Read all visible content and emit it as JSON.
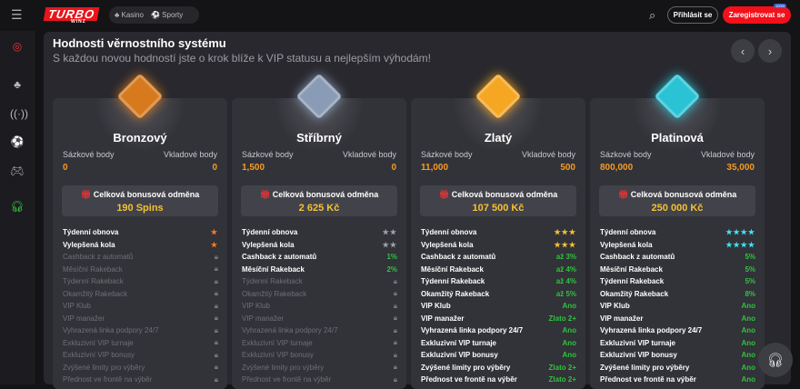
{
  "header": {
    "logo": "TURBO",
    "logo_sub": "WINZ",
    "nav": [
      {
        "label": "Kasino",
        "icon": "cherries-icon"
      },
      {
        "label": "Sporty",
        "icon": "soccer-ball-icon"
      }
    ],
    "login": "Přihlásit se",
    "register": "Zaregistrovat se",
    "badge": "100%"
  },
  "page": {
    "title": "Hodnosti věrnostního systému",
    "subtitle": "S každou novou hodností jste o krok blíže k VIP statusu a nejlepším výhodám!"
  },
  "labels": {
    "bet_points": "Sázkové body",
    "deposit_points": "Vkladové body",
    "total_bonus": "Celková bonusová odměna"
  },
  "colors": {
    "accent": "#f4101b",
    "green": "#2fc33d",
    "orange": "#f59b23"
  },
  "tiers": [
    {
      "name": "Bronzový",
      "bet": "0",
      "deposit": "0",
      "bonus": "190 Spins",
      "color": "#d77a1e",
      "star": "#f57c23",
      "rows": [
        {
          "label": "Týdenní obnova",
          "stars": 1
        },
        {
          "label": "Vylepšená kola",
          "stars": 1
        },
        {
          "label": "Cashback z automatů",
          "lock": true
        },
        {
          "label": "Měsíční Rakeback",
          "lock": true
        },
        {
          "label": "Týdenní Rakeback",
          "lock": true
        },
        {
          "label": "Okamžitý Rakeback",
          "lock": true
        },
        {
          "label": "VIP Klub",
          "lock": true
        },
        {
          "label": "VIP manažer",
          "lock": true
        },
        {
          "label": "Vyhrazená linka podpory 24/7",
          "lock": true
        },
        {
          "label": "Exkluzivní VIP turnaje",
          "lock": true
        },
        {
          "label": "Exkluzivní VIP bonusy",
          "lock": true
        },
        {
          "label": "Zvýšené limity pro výběry",
          "lock": true
        },
        {
          "label": "Přednost ve frontě na výběr",
          "lock": true
        }
      ]
    },
    {
      "name": "Stříbrný",
      "bet": "1,500",
      "deposit": "0",
      "bonus": "2 625 Kč",
      "color": "#8a9bb5",
      "star": "#a0a0a8",
      "rows": [
        {
          "label": "Týdenní obnova",
          "stars": 2
        },
        {
          "label": "Vylepšená kola",
          "stars": 2
        },
        {
          "label": "Cashback z automatů",
          "value": "1%"
        },
        {
          "label": "Měsíční Rakeback",
          "value": "2%"
        },
        {
          "label": "Týdenní Rakeback",
          "lock": true
        },
        {
          "label": "Okamžitý Rakeback",
          "lock": true
        },
        {
          "label": "VIP Klub",
          "lock": true
        },
        {
          "label": "VIP manažer",
          "lock": true
        },
        {
          "label": "Vyhrazená linka podpory 24/7",
          "lock": true
        },
        {
          "label": "Exkluzivní VIP turnaje",
          "lock": true
        },
        {
          "label": "Exkluzivní VIP bonusy",
          "lock": true
        },
        {
          "label": "Zvýšené limity pro výběry",
          "lock": true
        },
        {
          "label": "Přednost ve frontě na výběr",
          "lock": true
        }
      ]
    },
    {
      "name": "Zlatý",
      "bet": "11,000",
      "deposit": "500",
      "bonus": "107 500 Kč",
      "color": "#f5a623",
      "star": "#f5c232",
      "rows": [
        {
          "label": "Týdenní obnova",
          "stars": 3
        },
        {
          "label": "Vylepšená kola",
          "stars": 3
        },
        {
          "label": "Cashback z automatů",
          "value": "až 3%"
        },
        {
          "label": "Měsíční Rakeback",
          "value": "až 4%"
        },
        {
          "label": "Týdenní Rakeback",
          "value": "až 4%"
        },
        {
          "label": "Okamžitý Rakeback",
          "value": "až 5%"
        },
        {
          "label": "VIP Klub",
          "value": "Ano"
        },
        {
          "label": "VIP manažer",
          "value": "Zlato 2+"
        },
        {
          "label": "Vyhrazená linka podpory 24/7",
          "value": "Ano"
        },
        {
          "label": "Exkluzivní VIP turnaje",
          "value": "Ano"
        },
        {
          "label": "Exkluzivní VIP bonusy",
          "value": "Ano"
        },
        {
          "label": "Zvýšené limity pro výběry",
          "value": "Zlato 2+"
        },
        {
          "label": "Přednost ve frontě na výběr",
          "value": "Zlato 2+"
        }
      ]
    },
    {
      "name": "Platinová",
      "bet": "800,000",
      "deposit": "35,000",
      "bonus": "250 000 Kč",
      "color": "#2ac3d6",
      "star": "#3fe3f0",
      "rows": [
        {
          "label": "Týdenní obnova",
          "stars": 4
        },
        {
          "label": "Vylepšená kola",
          "stars": 4
        },
        {
          "label": "Cashback z automatů",
          "value": "5%"
        },
        {
          "label": "Měsíční Rakeback",
          "value": "5%"
        },
        {
          "label": "Týdenní Rakeback",
          "value": "5%"
        },
        {
          "label": "Okamžitý Rakeback",
          "value": "8%"
        },
        {
          "label": "VIP Klub",
          "value": "Ano"
        },
        {
          "label": "VIP manažer",
          "value": "Ano"
        },
        {
          "label": "Vyhrazená linka podpory 24/7",
          "value": "Ano"
        },
        {
          "label": "Exkluzivní VIP turnaje",
          "value": "Ano"
        },
        {
          "label": "Exkluzivní VIP bonusy",
          "value": "Ano"
        },
        {
          "label": "Zvýšené limity pro výběry",
          "value": "Ano"
        },
        {
          "label": "Přednost ve frontě na výběr",
          "value": "Ano"
        }
      ]
    }
  ]
}
